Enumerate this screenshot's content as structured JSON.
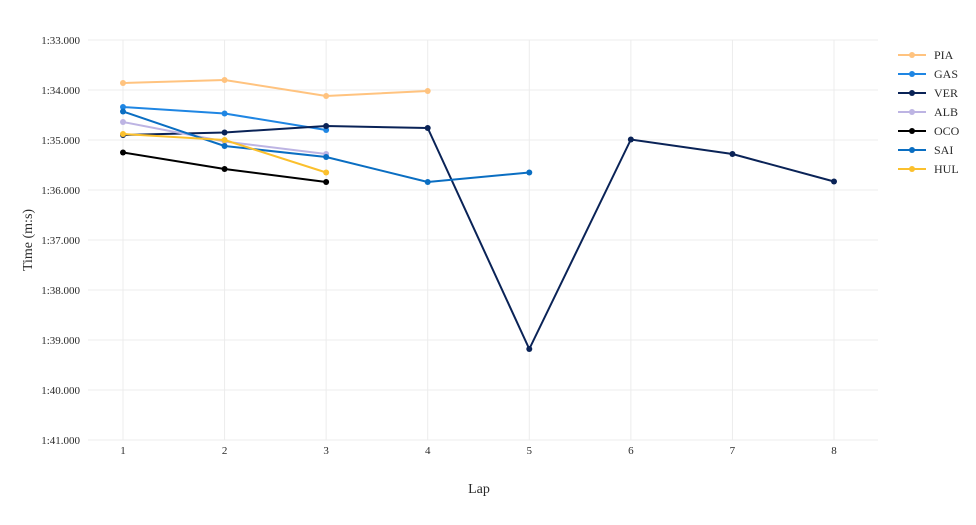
{
  "chart_data": {
    "type": "line",
    "title": "",
    "xlabel": "Lap",
    "ylabel": "Time (m:s)",
    "x": [
      1,
      2,
      3,
      4,
      5,
      6,
      7,
      8
    ],
    "x_tick_labels": [
      "1",
      "2",
      "3",
      "4",
      "5",
      "6",
      "7",
      "8"
    ],
    "y_unit": "lap time in seconds (axis reversed, faster at top)",
    "ylim": [
      93.0,
      101.0
    ],
    "y_reversed": true,
    "y_ticks": [
      93,
      94,
      95,
      96,
      97,
      98,
      99,
      100,
      101
    ],
    "y_tick_labels": [
      "1:33.000",
      "1:34.000",
      "1:35.000",
      "1:36.000",
      "1:37.000",
      "1:38.000",
      "1:39.000",
      "1:40.000",
      "1:41.000"
    ],
    "grid": true,
    "legend_position": "top-right",
    "series": [
      {
        "name": "PIA",
        "color": "#FFC37F",
        "x": [
          1,
          2,
          3,
          4
        ],
        "y": [
          93.86,
          93.8,
          94.12,
          94.02
        ]
      },
      {
        "name": "GAS",
        "color": "#1F86E3",
        "x": [
          1,
          2,
          3
        ],
        "y": [
          94.34,
          94.47,
          94.8
        ]
      },
      {
        "name": "VER",
        "color": "#0A2357",
        "x": [
          1,
          2,
          3,
          4,
          5,
          6,
          7,
          8
        ],
        "y": [
          94.9,
          94.85,
          94.72,
          94.76,
          99.18,
          94.99,
          95.28,
          95.83
        ]
      },
      {
        "name": "ALB",
        "color": "#BDB4E3",
        "x": [
          1,
          2,
          3
        ],
        "y": [
          94.64,
          95.03,
          95.28
        ]
      },
      {
        "name": "OCO",
        "color": "#000000",
        "x": [
          1,
          2,
          3
        ],
        "y": [
          95.25,
          95.58,
          95.84
        ]
      },
      {
        "name": "SAI",
        "color": "#0A6EC2",
        "x": [
          1,
          2,
          3,
          4,
          5
        ],
        "y": [
          94.43,
          95.12,
          95.34,
          95.84,
          95.65
        ]
      },
      {
        "name": "HUL",
        "color": "#FBC02D",
        "x": [
          1,
          2,
          3
        ],
        "y": [
          94.88,
          95.0,
          95.65
        ]
      }
    ]
  }
}
